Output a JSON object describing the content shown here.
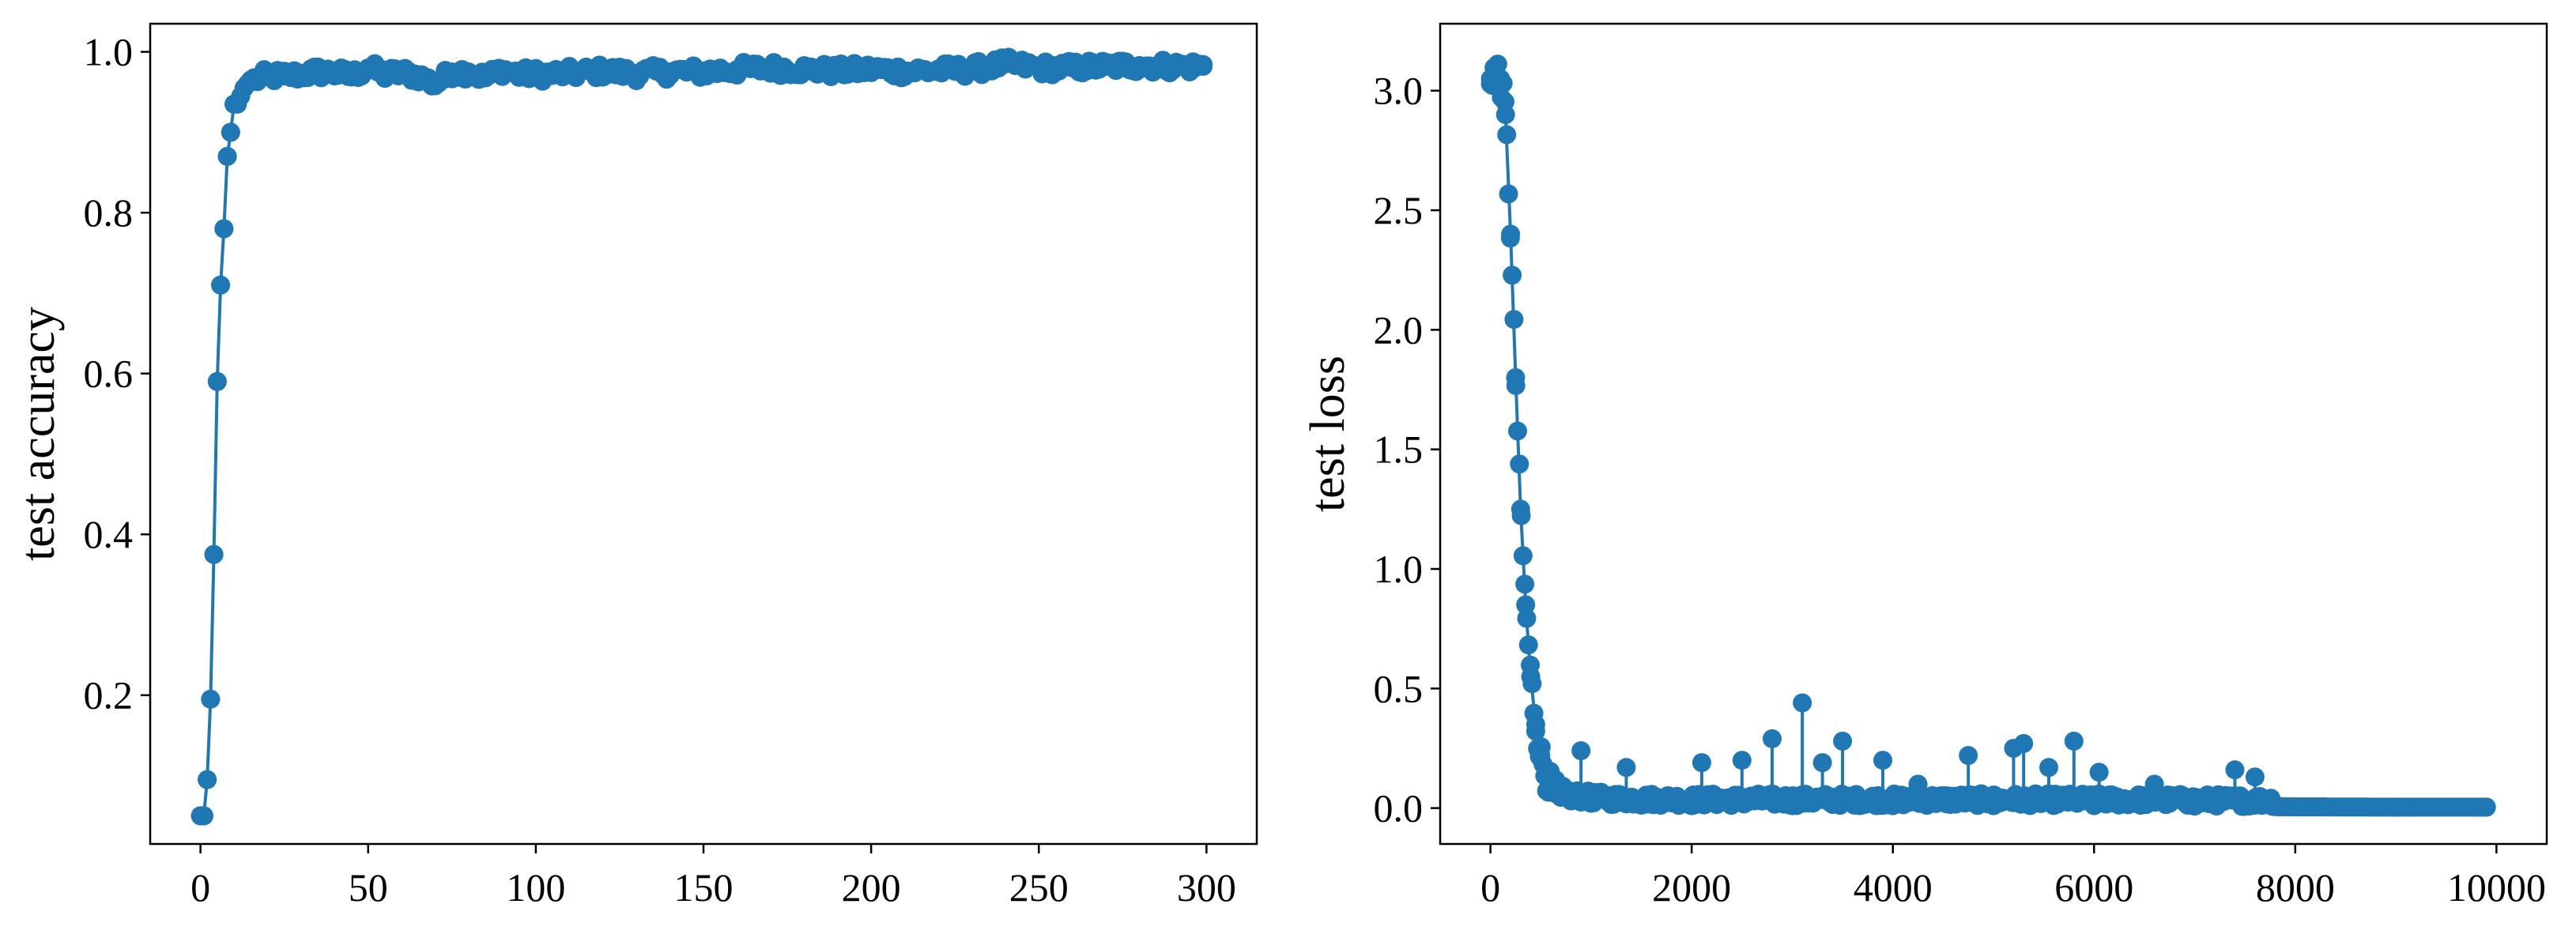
{
  "chart_data": [
    {
      "type": "line",
      "title": "",
      "xlabel": "",
      "ylabel": "test accuracy",
      "xlim": [
        -15,
        315
      ],
      "ylim": [
        0.015,
        1.035
      ],
      "xticks": [
        0,
        50,
        100,
        150,
        200,
        250,
        300
      ],
      "xtick_labels": [
        "0",
        "50",
        "100",
        "150",
        "200",
        "250",
        "300"
      ],
      "yticks": [
        0.2,
        0.4,
        0.6,
        0.8,
        1.0
      ],
      "ytick_labels": [
        "0.2",
        "0.4",
        "0.6",
        "0.8",
        "1.0"
      ],
      "grid": false,
      "marker": "circle",
      "color": "#1f77b4",
      "x_range": [
        0,
        299
      ],
      "series": [
        {
          "x": [
            0,
            1,
            2,
            3,
            4,
            5,
            6,
            7,
            8,
            9,
            10,
            11,
            12,
            13,
            14,
            15,
            16,
            18,
            20,
            25,
            30,
            35,
            40,
            45,
            50,
            55,
            60,
            65,
            70,
            75,
            80,
            85,
            90,
            95,
            100,
            110,
            120,
            130,
            140,
            150,
            160,
            170,
            180,
            190,
            200,
            210,
            220,
            230,
            240,
            250,
            260,
            270,
            280,
            290,
            299
          ],
          "y": [
            0.05,
            0.05,
            0.095,
            0.195,
            0.375,
            0.59,
            0.71,
            0.78,
            0.87,
            0.9,
            0.935,
            0.935,
            0.945,
            0.955,
            0.96,
            0.965,
            0.965,
            0.968,
            0.97,
            0.97,
            0.972,
            0.975,
            0.974,
            0.97,
            0.98,
            0.972,
            0.974,
            0.97,
            0.96,
            0.975,
            0.975,
            0.968,
            0.978,
            0.972,
            0.972,
            0.973,
            0.976,
            0.973,
            0.975,
            0.975,
            0.978,
            0.98,
            0.978,
            0.976,
            0.978,
            0.976,
            0.977,
            0.978,
            0.985,
            0.98,
            0.98,
            0.982,
            0.983,
            0.982,
            0.982
          ]
        }
      ]
    },
    {
      "type": "line",
      "title": "",
      "xlabel": "",
      "ylabel": "test loss",
      "xlim": [
        -500,
        10500
      ],
      "ylim": [
        -0.15,
        3.28
      ],
      "xticks": [
        0,
        2000,
        4000,
        6000,
        8000,
        10000
      ],
      "xtick_labels": [
        "0",
        "2000",
        "4000",
        "6000",
        "8000",
        "10000"
      ],
      "yticks": [
        0.0,
        0.5,
        1.0,
        1.5,
        2.0,
        2.5,
        3.0
      ],
      "ytick_labels": [
        "0.0",
        "0.5",
        "1.0",
        "1.5",
        "2.0",
        "2.5",
        "3.0"
      ],
      "grid": false,
      "marker": "circle",
      "color": "#1f77b4",
      "x_range": [
        0,
        9900
      ],
      "series": [
        {
          "x": [
            0,
            50,
            100,
            150,
            200,
            250,
            300,
            350,
            400,
            450,
            500,
            550,
            600,
            650,
            700,
            800,
            900,
            1000,
            1200,
            1500,
            2000,
            3000,
            4000,
            5000,
            6000,
            7000,
            8000,
            9000,
            9900
          ],
          "y": [
            3.05,
            3.1,
            3.05,
            2.9,
            2.4,
            1.8,
            1.25,
            0.85,
            0.55,
            0.35,
            0.22,
            0.14,
            0.09,
            0.06,
            0.045,
            0.03,
            0.025,
            0.02,
            0.015,
            0.012,
            0.01,
            0.01,
            0.01,
            0.01,
            0.01,
            0.008,
            0.005,
            0.004,
            0.004
          ]
        }
      ],
      "spikes": {
        "x": [
          900,
          1350,
          2100,
          2500,
          2800,
          3100,
          3300,
          3500,
          3900,
          4250,
          4750,
          5200,
          5300,
          5550,
          5800,
          6050,
          6600,
          7400,
          7600
        ],
        "y": [
          0.24,
          0.17,
          0.19,
          0.2,
          0.29,
          0.44,
          0.19,
          0.28,
          0.2,
          0.1,
          0.22,
          0.25,
          0.27,
          0.17,
          0.28,
          0.15,
          0.1,
          0.16,
          0.13
        ]
      }
    }
  ]
}
